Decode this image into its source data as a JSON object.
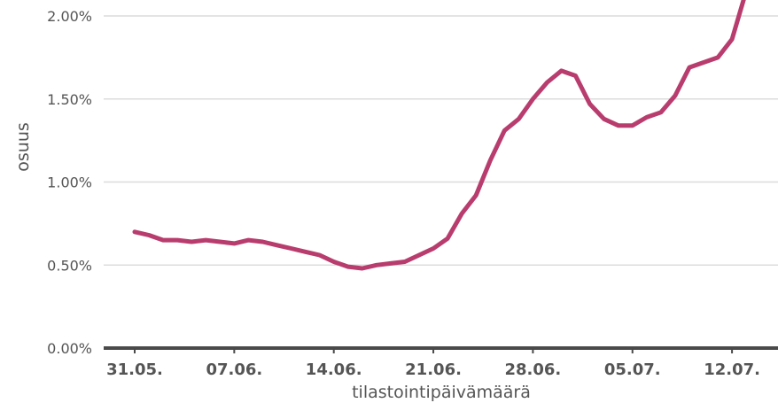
{
  "chart_data": {
    "type": "line",
    "xlabel": "tilastointipäivämäärä",
    "ylabel": "osuus",
    "ylim": [
      0,
      2.0
    ],
    "y_ticks": [
      {
        "value": 0.0,
        "label": "0.00%"
      },
      {
        "value": 0.5,
        "label": "0.50%"
      },
      {
        "value": 1.0,
        "label": "1.00%"
      },
      {
        "value": 1.5,
        "label": "1.50%"
      },
      {
        "value": 2.0,
        "label": "2.00%"
      }
    ],
    "x_ticks": [
      {
        "day": 0,
        "label": "31.05."
      },
      {
        "day": 7,
        "label": "07.06."
      },
      {
        "day": 14,
        "label": "14.06."
      },
      {
        "day": 21,
        "label": "21.06."
      },
      {
        "day": 28,
        "label": "28.06."
      },
      {
        "day": 35,
        "label": "05.07."
      },
      {
        "day": 42,
        "label": "12.07."
      }
    ],
    "grid": true,
    "colors": {
      "line": "#b83d6e"
    },
    "series": [
      {
        "x": [
          0,
          1,
          2,
          3,
          4,
          5,
          6,
          7,
          8,
          9,
          10,
          11,
          12,
          13,
          14,
          15,
          16,
          17,
          18,
          19,
          20,
          21,
          22,
          23,
          24,
          25,
          26,
          27,
          28,
          29,
          30,
          31,
          32,
          33,
          34,
          35,
          36,
          37,
          38,
          39,
          40,
          41,
          42,
          43
        ],
        "values": [
          0.7,
          0.68,
          0.65,
          0.65,
          0.64,
          0.65,
          0.64,
          0.63,
          0.65,
          0.64,
          0.62,
          0.6,
          0.58,
          0.56,
          0.52,
          0.49,
          0.48,
          0.5,
          0.51,
          0.52,
          0.56,
          0.6,
          0.66,
          0.81,
          0.92,
          1.13,
          1.31,
          1.38,
          1.5,
          1.6,
          1.67,
          1.64,
          1.47,
          1.38,
          1.34,
          1.34,
          1.39,
          1.42,
          1.52,
          1.69,
          1.72,
          1.75,
          1.86,
          2.15
        ]
      }
    ]
  }
}
